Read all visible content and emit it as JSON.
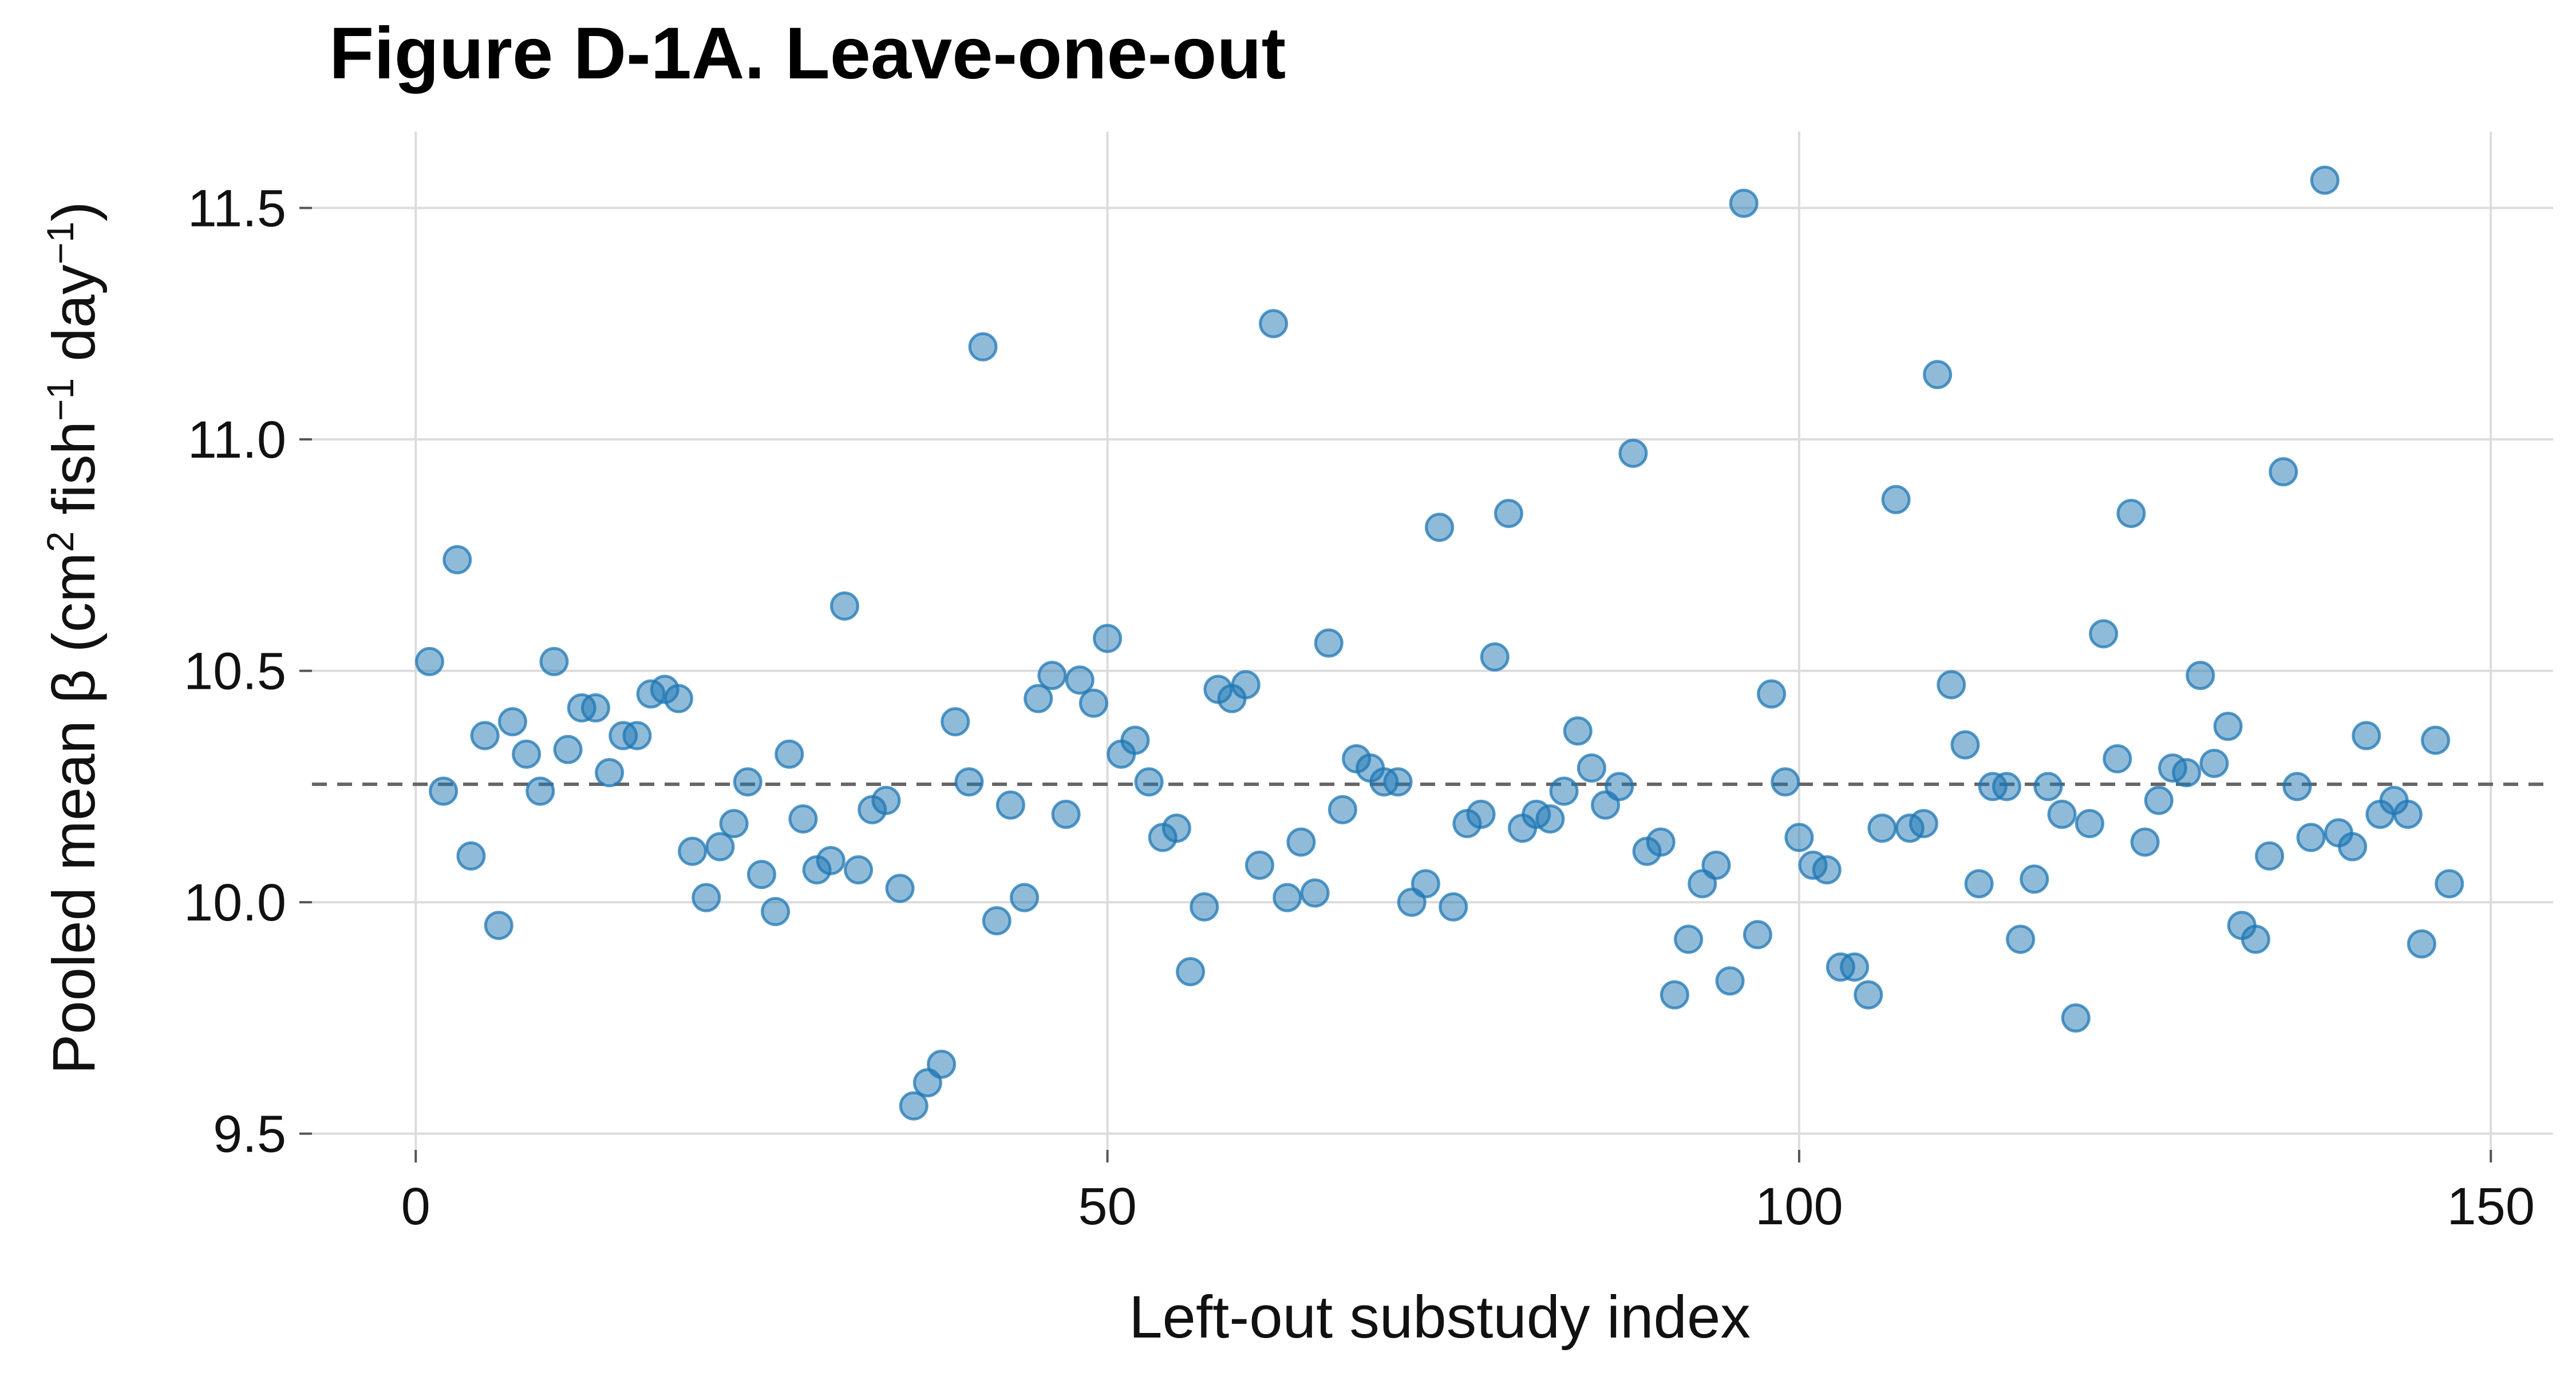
{
  "chart_data": {
    "type": "scatter",
    "title": "Figure D-1A. Leave-one-out",
    "xlabel": "Left-out substudy index",
    "ylabel": {
      "text_before_sup1": "Pooled mean β (cm",
      "sup1": "2",
      "text_between": " fish",
      "sup2": "−1",
      "text_after_sup2": " day",
      "sup3": "−1",
      "text_end": ")"
    },
    "xlim": [
      -7.5,
      154.5
    ],
    "ylim": [
      9.465,
      11.665
    ],
    "xticks": [
      0,
      50,
      100,
      150
    ],
    "xtick_labels": [
      "0",
      "50",
      "100",
      "150"
    ],
    "yticks": [
      9.5,
      10.0,
      10.5,
      11.0,
      11.5
    ],
    "ytick_labels": [
      "9.5",
      "10.0",
      "10.5",
      "11.0",
      "11.5"
    ],
    "grid": true,
    "reference_line": {
      "y": 10.255,
      "style": "dashed"
    },
    "marker_color": "#1f77b4",
    "marker_alpha": 0.5,
    "points": {
      "x": [
        1,
        2,
        3,
        4,
        5,
        6,
        7,
        8,
        9,
        10,
        11,
        12,
        13,
        14,
        15,
        16,
        17,
        18,
        19,
        20,
        21,
        22,
        23,
        24,
        25,
        26,
        27,
        28,
        29,
        30,
        31,
        32,
        33,
        34,
        35,
        36,
        37,
        38,
        39,
        40,
        41,
        42,
        43,
        44,
        45,
        46,
        47,
        48,
        49,
        50,
        51,
        52,
        53,
        54,
        55,
        56,
        57,
        58,
        59,
        60,
        61,
        62,
        63,
        64,
        65,
        66,
        67,
        68,
        69,
        70,
        71,
        72,
        73,
        74,
        75,
        76,
        77,
        78,
        79,
        80,
        81,
        82,
        83,
        84,
        85,
        86,
        87,
        88,
        89,
        90,
        91,
        92,
        93,
        94,
        95,
        96,
        97,
        98,
        99,
        100,
        101,
        102,
        103,
        104,
        105,
        106,
        107,
        108,
        109,
        110,
        111,
        112,
        113,
        114,
        115,
        116,
        117,
        118,
        119,
        120,
        121,
        122,
        123,
        124,
        125,
        126,
        127,
        128,
        129,
        130,
        131,
        132,
        133,
        134,
        135,
        136,
        137,
        138,
        139,
        140,
        141,
        142,
        143,
        144,
        145,
        146,
        147
      ],
      "y": [
        10.52,
        10.24,
        10.74,
        10.1,
        10.36,
        9.95,
        10.39,
        10.32,
        10.24,
        10.52,
        10.33,
        10.42,
        10.42,
        10.28,
        10.36,
        10.36,
        10.45,
        10.46,
        10.44,
        10.11,
        10.01,
        10.12,
        10.17,
        10.26,
        10.06,
        9.98,
        10.32,
        10.18,
        10.07,
        10.09,
        10.64,
        10.07,
        10.2,
        10.22,
        10.03,
        9.56,
        9.61,
        9.65,
        10.39,
        10.26,
        11.2,
        9.96,
        10.21,
        10.01,
        10.44,
        10.49,
        10.19,
        10.48,
        10.43,
        10.57,
        10.32,
        10.35,
        10.26,
        10.14,
        10.16,
        9.85,
        9.99,
        10.46,
        10.44,
        10.47,
        10.08,
        11.25,
        10.01,
        10.13,
        10.02,
        10.56,
        10.2,
        10.31,
        10.29,
        10.26,
        10.26,
        10.0,
        10.04,
        10.81,
        9.99,
        10.17,
        10.19,
        10.53,
        10.84,
        10.16,
        10.19,
        10.18,
        10.24,
        10.37,
        10.29,
        10.21,
        10.25,
        10.97,
        10.11,
        10.13,
        9.8,
        9.92,
        10.04,
        10.08,
        9.83,
        11.51,
        9.93,
        10.45,
        10.26,
        10.14,
        10.08,
        10.07,
        9.86,
        9.86,
        9.8,
        10.16,
        10.87,
        10.16,
        10.17,
        11.14,
        10.47,
        10.34,
        10.04,
        10.25,
        10.25,
        9.92,
        10.05,
        10.25,
        10.19,
        9.75,
        10.17,
        10.58,
        10.31,
        10.84,
        10.13,
        10.22,
        10.29,
        10.28,
        10.49,
        10.3,
        10.38,
        9.95,
        9.92,
        10.1,
        10.93,
        10.25,
        10.14,
        11.56,
        10.15,
        10.12,
        10.36,
        10.19,
        10.22,
        10.19,
        9.91,
        10.35,
        10.04
      ]
    }
  }
}
